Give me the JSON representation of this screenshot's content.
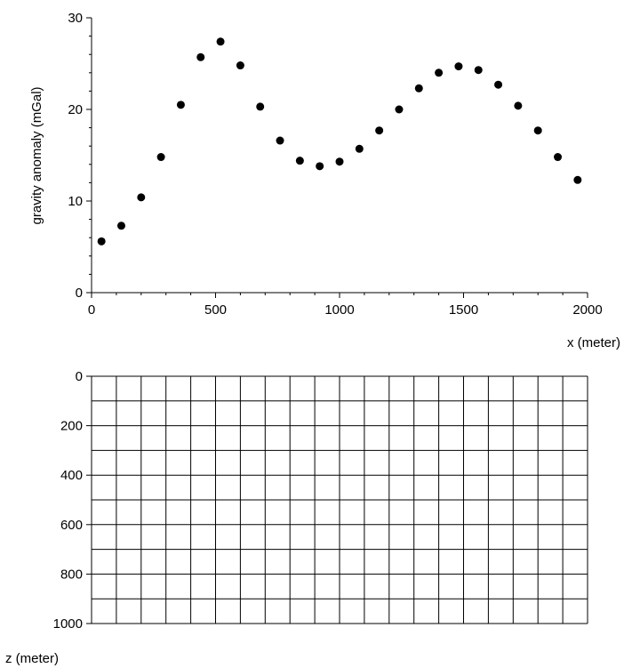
{
  "chart_data": [
    {
      "type": "scatter",
      "xlabel": "x (meter)",
      "ylabel": "gravity anomaly (mGal)",
      "xlim": [
        0,
        2000
      ],
      "ylim": [
        0,
        30
      ],
      "x_ticks": [
        "0",
        "500",
        "1000",
        "1500",
        "2000"
      ],
      "y_ticks": [
        "0",
        "10",
        "20",
        "30"
      ],
      "x_tick_values": [
        0,
        500,
        1000,
        1500,
        2000
      ],
      "y_tick_values": [
        0,
        10,
        20,
        30
      ],
      "grid": false,
      "series": [
        {
          "color": "#000000",
          "x": [
            40,
            120,
            200,
            280,
            360,
            440,
            520,
            600,
            680,
            760,
            840,
            920,
            1000,
            1080,
            1160,
            1240,
            1320,
            1400,
            1480,
            1560,
            1640,
            1720,
            1800,
            1880,
            1960
          ],
          "y": [
            5.6,
            7.3,
            10.4,
            14.8,
            20.5,
            25.7,
            27.4,
            24.8,
            20.3,
            16.6,
            14.4,
            13.8,
            14.3,
            15.7,
            17.7,
            20.0,
            22.3,
            24.0,
            24.7,
            24.3,
            22.7,
            20.4,
            17.7,
            14.8,
            12.3
          ]
        }
      ]
    },
    {
      "type": "grid",
      "xlabel": "",
      "ylabel": "z (meter)",
      "xlim": [
        0,
        2000
      ],
      "ylim": [
        1000,
        0
      ],
      "y_ticks": [
        "0",
        "200",
        "400",
        "600",
        "800",
        "1000"
      ],
      "y_tick_values": [
        0,
        200,
        400,
        600,
        800,
        1000
      ],
      "columns": 20,
      "rows": 10,
      "grid": true
    }
  ]
}
